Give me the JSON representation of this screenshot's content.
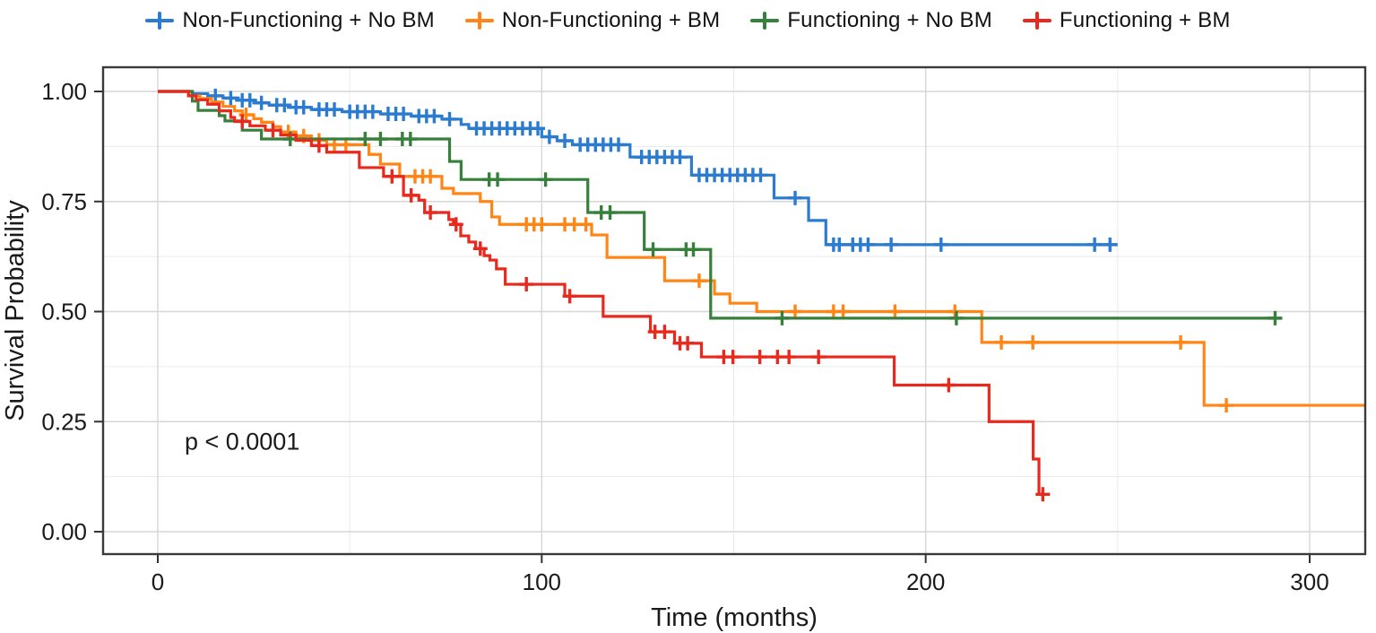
{
  "figure": {
    "kind": "kaplan-meier-survival-plot",
    "background": "#ffffff"
  },
  "chart_data": {
    "type": "line",
    "subtype": "kaplan-meier-step",
    "title": "",
    "xlabel": "Time (months)",
    "ylabel": "Survival Probability",
    "xlim": [
      -14.2,
      314.5
    ],
    "ylim": [
      -0.05,
      1.05
    ],
    "x_tick_values": [
      0,
      100,
      200,
      300
    ],
    "x_tick_labels": [
      "0",
      "100",
      "200",
      "300"
    ],
    "x_minor_gridlines": [
      50,
      150,
      250
    ],
    "y_tick_values": [
      0,
      0.25,
      0.5,
      0.75,
      1.0
    ],
    "y_tick_labels": [
      "0.00",
      "0.25",
      "0.50",
      "0.75",
      "1.00"
    ],
    "y_minor_gridlines": [
      0.125,
      0.375,
      0.625,
      0.875
    ],
    "grid": "on",
    "legend_position": "top",
    "p_value_label": "p < 0.0001",
    "colors": {
      "grid_major": "#d6d6d6",
      "grid_minor": "#eaeaea",
      "panel_border": "#3a3a3a",
      "axis_text": "#1a1a1a"
    },
    "series": [
      {
        "name": "Non-Functioning + No BM",
        "color": "#2b7bd0",
        "points": [
          [
            0,
            1.0
          ],
          [
            9,
            0.995
          ],
          [
            13,
            0.99
          ],
          [
            17,
            0.985
          ],
          [
            21,
            0.98
          ],
          [
            25,
            0.974
          ],
          [
            29,
            0.969
          ],
          [
            34,
            0.964
          ],
          [
            40,
            0.959
          ],
          [
            48,
            0.954
          ],
          [
            58,
            0.949
          ],
          [
            66,
            0.944
          ],
          [
            74,
            0.937
          ],
          [
            79,
            0.925
          ],
          [
            81,
            0.916
          ],
          [
            100,
            0.897
          ],
          [
            104,
            0.888
          ],
          [
            108,
            0.879
          ],
          [
            123,
            0.851
          ],
          [
            139,
            0.81
          ],
          [
            160.5,
            0.758
          ],
          [
            169.5,
            0.707
          ],
          [
            174,
            0.652
          ]
        ],
        "end": 250,
        "censors": [
          [
            15,
            0.99
          ],
          [
            19,
            0.985
          ],
          [
            22,
            0.98
          ],
          [
            24,
            0.98
          ],
          [
            27,
            0.974
          ],
          [
            31,
            0.969
          ],
          [
            33,
            0.969
          ],
          [
            36,
            0.964
          ],
          [
            38,
            0.964
          ],
          [
            42,
            0.959
          ],
          [
            44,
            0.959
          ],
          [
            46,
            0.959
          ],
          [
            50,
            0.954
          ],
          [
            52,
            0.954
          ],
          [
            54,
            0.954
          ],
          [
            56,
            0.954
          ],
          [
            60,
            0.949
          ],
          [
            62,
            0.949
          ],
          [
            64,
            0.949
          ],
          [
            68,
            0.944
          ],
          [
            70,
            0.944
          ],
          [
            72,
            0.944
          ],
          [
            76,
            0.937
          ],
          [
            83,
            0.916
          ],
          [
            85,
            0.916
          ],
          [
            87,
            0.916
          ],
          [
            89,
            0.916
          ],
          [
            91,
            0.916
          ],
          [
            93,
            0.916
          ],
          [
            95,
            0.916
          ],
          [
            97,
            0.916
          ],
          [
            99,
            0.916
          ],
          [
            102,
            0.897
          ],
          [
            106,
            0.888
          ],
          [
            110,
            0.879
          ],
          [
            112,
            0.879
          ],
          [
            114,
            0.879
          ],
          [
            116,
            0.879
          ],
          [
            118,
            0.879
          ],
          [
            120,
            0.879
          ],
          [
            126,
            0.851
          ],
          [
            128,
            0.851
          ],
          [
            130,
            0.851
          ],
          [
            132,
            0.851
          ],
          [
            134,
            0.851
          ],
          [
            136,
            0.851
          ],
          [
            141,
            0.81
          ],
          [
            143,
            0.81
          ],
          [
            145,
            0.81
          ],
          [
            147,
            0.81
          ],
          [
            149,
            0.81
          ],
          [
            151,
            0.81
          ],
          [
            153,
            0.81
          ],
          [
            155,
            0.81
          ],
          [
            157,
            0.81
          ],
          [
            166,
            0.758
          ],
          [
            176,
            0.652
          ],
          [
            177.5,
            0.652
          ],
          [
            181,
            0.652
          ],
          [
            183,
            0.652
          ],
          [
            185,
            0.652
          ],
          [
            191,
            0.652
          ],
          [
            204,
            0.652
          ],
          [
            244,
            0.652
          ],
          [
            248,
            0.652
          ]
        ]
      },
      {
        "name": "Non-Functioning + BM",
        "color": "#ff8616",
        "points": [
          [
            0,
            1.0
          ],
          [
            8,
            0.99
          ],
          [
            11,
            0.984
          ],
          [
            14,
            0.976
          ],
          [
            17,
            0.966
          ],
          [
            20,
            0.956
          ],
          [
            22,
            0.947
          ],
          [
            25,
            0.938
          ],
          [
            27,
            0.93
          ],
          [
            30,
            0.92
          ],
          [
            32,
            0.908
          ],
          [
            36,
            0.899
          ],
          [
            40,
            0.889
          ],
          [
            44,
            0.879
          ],
          [
            55,
            0.857
          ],
          [
            58,
            0.835
          ],
          [
            63,
            0.807
          ],
          [
            74,
            0.78
          ],
          [
            77,
            0.768
          ],
          [
            84,
            0.75
          ],
          [
            87,
            0.715
          ],
          [
            89,
            0.698
          ],
          [
            113,
            0.674
          ],
          [
            117,
            0.623
          ],
          [
            132,
            0.57
          ],
          [
            145,
            0.54
          ],
          [
            149,
            0.519
          ],
          [
            156,
            0.5
          ],
          [
            214.6,
            0.43
          ],
          [
            272.5,
            0.287
          ]
        ],
        "end": 314.5,
        "censors": [
          [
            23,
            0.947
          ],
          [
            34,
            0.908
          ],
          [
            38,
            0.899
          ],
          [
            42,
            0.889
          ],
          [
            46,
            0.879
          ],
          [
            49,
            0.879
          ],
          [
            67,
            0.807
          ],
          [
            69,
            0.807
          ],
          [
            71,
            0.807
          ],
          [
            96,
            0.698
          ],
          [
            98,
            0.698
          ],
          [
            100,
            0.698
          ],
          [
            106,
            0.698
          ],
          [
            108.5,
            0.698
          ],
          [
            111.5,
            0.698
          ],
          [
            141,
            0.57
          ],
          [
            166,
            0.5
          ],
          [
            176,
            0.5
          ],
          [
            178.5,
            0.5
          ],
          [
            192,
            0.5
          ],
          [
            207.6,
            0.5
          ],
          [
            219.7,
            0.43
          ],
          [
            227.9,
            0.43
          ],
          [
            266.4,
            0.43
          ],
          [
            278.3,
            0.287
          ]
        ]
      },
      {
        "name": "Functioning + No BM",
        "color": "#37803b",
        "points": [
          [
            0,
            1.0
          ],
          [
            9,
            0.978
          ],
          [
            10.5,
            0.957
          ],
          [
            16,
            0.945
          ],
          [
            17.5,
            0.933
          ],
          [
            22,
            0.912
          ],
          [
            27,
            0.892
          ],
          [
            76,
            0.841
          ],
          [
            79,
            0.8
          ],
          [
            112,
            0.725
          ],
          [
            126.7,
            0.641
          ],
          [
            144,
            0.485
          ]
        ],
        "end": 291,
        "censors": [
          [
            34.5,
            0.892
          ],
          [
            54,
            0.892
          ],
          [
            58,
            0.892
          ],
          [
            63.7,
            0.892
          ],
          [
            65.8,
            0.892
          ],
          [
            86.3,
            0.8
          ],
          [
            88.5,
            0.8
          ],
          [
            101,
            0.8
          ],
          [
            115.5,
            0.725
          ],
          [
            117.8,
            0.725
          ],
          [
            129,
            0.641
          ],
          [
            137.6,
            0.641
          ],
          [
            139.5,
            0.641
          ],
          [
            162.6,
            0.485
          ],
          [
            208,
            0.485
          ],
          [
            291,
            0.485
          ]
        ]
      },
      {
        "name": "Functioning + BM",
        "color": "#e8291d",
        "points": [
          [
            0,
            1.0
          ],
          [
            8,
            0.99
          ],
          [
            10,
            0.981
          ],
          [
            13,
            0.971
          ],
          [
            16,
            0.956
          ],
          [
            19,
            0.941
          ],
          [
            20,
            0.932
          ],
          [
            24,
            0.922
          ],
          [
            28,
            0.912
          ],
          [
            32,
            0.901
          ],
          [
            36,
            0.889
          ],
          [
            40,
            0.877
          ],
          [
            44,
            0.862
          ],
          [
            52.5,
            0.827
          ],
          [
            58.8,
            0.807
          ],
          [
            64,
            0.764
          ],
          [
            68,
            0.753
          ],
          [
            69.5,
            0.725
          ],
          [
            75.8,
            0.709
          ],
          [
            77,
            0.698
          ],
          [
            78.9,
            0.672
          ],
          [
            81,
            0.658
          ],
          [
            82.8,
            0.643
          ],
          [
            85,
            0.627
          ],
          [
            86.5,
            0.617
          ],
          [
            88.2,
            0.597
          ],
          [
            90.5,
            0.562
          ],
          [
            106,
            0.535
          ],
          [
            116,
            0.489
          ],
          [
            128.3,
            0.454
          ],
          [
            134.6,
            0.428
          ],
          [
            141.6,
            0.397
          ],
          [
            191.8,
            0.333
          ],
          [
            216.5,
            0.25
          ],
          [
            228,
            0.165
          ],
          [
            229.5,
            0.085
          ]
        ],
        "end": 230.7,
        "censors": [
          [
            22,
            0.932
          ],
          [
            30,
            0.912
          ],
          [
            42,
            0.877
          ],
          [
            61,
            0.807
          ],
          [
            66,
            0.764
          ],
          [
            71,
            0.725
          ],
          [
            77.7,
            0.698
          ],
          [
            84,
            0.643
          ],
          [
            96,
            0.562
          ],
          [
            107.3,
            0.535
          ],
          [
            129.5,
            0.454
          ],
          [
            132,
            0.454
          ],
          [
            136,
            0.428
          ],
          [
            138,
            0.428
          ],
          [
            147.4,
            0.397
          ],
          [
            149.8,
            0.397
          ],
          [
            156.8,
            0.397
          ],
          [
            161.4,
            0.397
          ],
          [
            164.4,
            0.397
          ],
          [
            172.1,
            0.397
          ],
          [
            206,
            0.333
          ],
          [
            230.5,
            0.085
          ]
        ]
      }
    ]
  }
}
